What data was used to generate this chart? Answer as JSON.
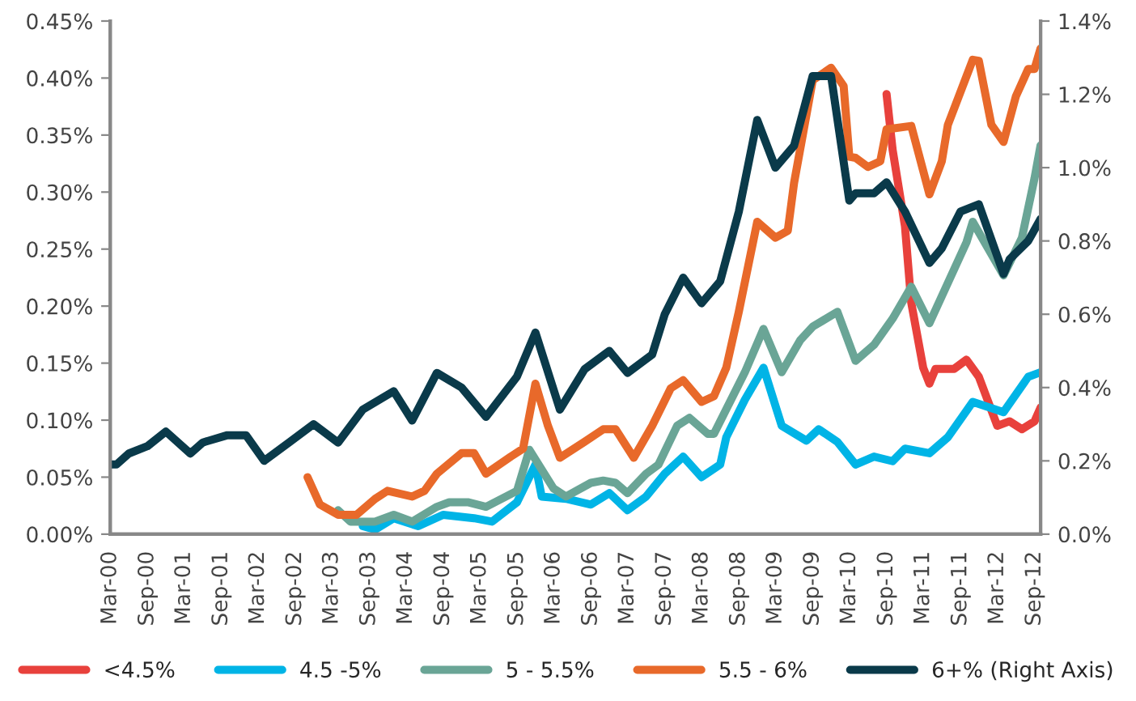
{
  "chart_data": {
    "type": "line",
    "legend": "bottom",
    "grid": false,
    "marker": "none",
    "line_style": "solid",
    "xlim": [
      "2000-03",
      "2012-10"
    ],
    "xticks": [
      {
        "value": "2000-03",
        "label": "Mar-00"
      },
      {
        "value": "2000-09",
        "label": "Sep-00"
      },
      {
        "value": "2001-03",
        "label": "Mar-01"
      },
      {
        "value": "2001-09",
        "label": "Sep-01"
      },
      {
        "value": "2002-03",
        "label": "Mar-02"
      },
      {
        "value": "2002-09",
        "label": "Sep-02"
      },
      {
        "value": "2003-03",
        "label": "Mar-03"
      },
      {
        "value": "2003-09",
        "label": "Sep-03"
      },
      {
        "value": "2004-03",
        "label": "Mar-04"
      },
      {
        "value": "2004-09",
        "label": "Sep-04"
      },
      {
        "value": "2005-03",
        "label": "Mar-05"
      },
      {
        "value": "2005-09",
        "label": "Sep-05"
      },
      {
        "value": "2006-03",
        "label": "Mar-06"
      },
      {
        "value": "2006-09",
        "label": "Sep-06"
      },
      {
        "value": "2007-03",
        "label": "Mar-07"
      },
      {
        "value": "2007-09",
        "label": "Sep-07"
      },
      {
        "value": "2008-03",
        "label": "Mar-08"
      },
      {
        "value": "2008-09",
        "label": "Sep-08"
      },
      {
        "value": "2009-03",
        "label": "Mar-09"
      },
      {
        "value": "2009-09",
        "label": "Sep-09"
      },
      {
        "value": "2010-03",
        "label": "Mar-10"
      },
      {
        "value": "2010-09",
        "label": "Sep-10"
      },
      {
        "value": "2011-03",
        "label": "Mar-11"
      },
      {
        "value": "2011-09",
        "label": "Sep-11"
      },
      {
        "value": "2012-03",
        "label": "Mar-12"
      },
      {
        "value": "2012-09",
        "label": "Sep-12"
      }
    ],
    "ylim": [
      0,
      0.45
    ],
    "yticks": [
      {
        "value": 0,
        "label": "0.00%"
      },
      {
        "value": 0.05,
        "label": "0.05%"
      },
      {
        "value": 0.1,
        "label": "0.10%"
      },
      {
        "value": 0.15,
        "label": "0.15%"
      },
      {
        "value": 0.2,
        "label": "0.20%"
      },
      {
        "value": 0.25,
        "label": "0.25%"
      },
      {
        "value": 0.3,
        "label": "0.30%"
      },
      {
        "value": 0.35,
        "label": "0.35%"
      },
      {
        "value": 0.4,
        "label": "0.40%"
      },
      {
        "value": 0.45,
        "label": "0.45%"
      }
    ],
    "y2lim": [
      0,
      1.4
    ],
    "y2ticks": [
      {
        "value": 0,
        "label": "0.0%"
      },
      {
        "value": 0.2,
        "label": "0.2%"
      },
      {
        "value": 0.4,
        "label": "0.4%"
      },
      {
        "value": 0.6,
        "label": "0.6%"
      },
      {
        "value": 0.8,
        "label": "0.8%"
      },
      {
        "value": 1.0,
        "label": "1.0%"
      },
      {
        "value": 1.2,
        "label": "1.2%"
      },
      {
        "value": 1.4,
        "label": "1.4%"
      }
    ],
    "series": [
      {
        "name": "<4.5%",
        "color": "#e8413c",
        "x": [
          "2010-09",
          "2010-10",
          "2010-12",
          "2011-01",
          "2011-03",
          "2011-04",
          "2011-05",
          "2011-08",
          "2011-10",
          "2011-12",
          "2012-03",
          "2012-05",
          "2012-07",
          "2012-09",
          "2012-10"
        ],
        "values": [
          0.386,
          0.337,
          0.27,
          0.203,
          0.146,
          0.132,
          0.145,
          0.145,
          0.153,
          0.138,
          0.095,
          0.099,
          0.092,
          0.099,
          0.111
        ]
      },
      {
        "name": "4.5 -5%",
        "color": "#00b4e6",
        "x": [
          "2003-08",
          "2003-10",
          "2004-01",
          "2004-05",
          "2004-09",
          "2005-02",
          "2005-05",
          "2005-09",
          "2005-12",
          "2006-01",
          "2006-05",
          "2006-09",
          "2006-12",
          "2007-03",
          "2007-06",
          "2007-09",
          "2007-12",
          "2008-03",
          "2008-06",
          "2008-07",
          "2008-10",
          "2009-01",
          "2009-04",
          "2009-08",
          "2009-10",
          "2010-01",
          "2010-04",
          "2010-07",
          "2010-10",
          "2010-12",
          "2011-04",
          "2011-07",
          "2011-11",
          "2012-04",
          "2012-08",
          "2012-10"
        ],
        "values": [
          0.007,
          0.004,
          0.014,
          0.007,
          0.017,
          0.014,
          0.011,
          0.028,
          0.061,
          0.033,
          0.031,
          0.026,
          0.036,
          0.021,
          0.033,
          0.053,
          0.068,
          0.05,
          0.061,
          0.085,
          0.118,
          0.146,
          0.095,
          0.082,
          0.092,
          0.081,
          0.061,
          0.068,
          0.064,
          0.075,
          0.071,
          0.085,
          0.116,
          0.107,
          0.138,
          0.142
        ]
      },
      {
        "name": "5 - 5.5%",
        "color": "#6aa596",
        "x": [
          "2003-04",
          "2003-06",
          "2003-10",
          "2004-01",
          "2004-04",
          "2004-08",
          "2004-10",
          "2005-01",
          "2005-04",
          "2005-09",
          "2005-11",
          "2006-03",
          "2006-05",
          "2006-09",
          "2006-11",
          "2007-01",
          "2007-03",
          "2007-06",
          "2007-08",
          "2007-11",
          "2008-01",
          "2008-04",
          "2008-05",
          "2008-10",
          "2009-01",
          "2009-04",
          "2009-07",
          "2009-09",
          "2010-01",
          "2010-04",
          "2010-07",
          "2010-10",
          "2011-01",
          "2011-04",
          "2011-10",
          "2011-11",
          "2012-04",
          "2012-07",
          "2012-09",
          "2012-10"
        ],
        "values": [
          0.021,
          0.011,
          0.011,
          0.017,
          0.011,
          0.024,
          0.028,
          0.028,
          0.024,
          0.038,
          0.074,
          0.04,
          0.033,
          0.045,
          0.047,
          0.045,
          0.036,
          0.053,
          0.061,
          0.095,
          0.102,
          0.088,
          0.088,
          0.142,
          0.18,
          0.142,
          0.17,
          0.182,
          0.195,
          0.152,
          0.166,
          0.189,
          0.217,
          0.185,
          0.256,
          0.274,
          0.227,
          0.26,
          0.312,
          0.341
        ]
      },
      {
        "name": "5.5 - 6%",
        "color": "#e8692a",
        "x": [
          "2002-11",
          "2003-01",
          "2003-04",
          "2003-07",
          "2003-10",
          "2003-12",
          "2004-04",
          "2004-06",
          "2004-08",
          "2004-12",
          "2005-02",
          "2005-04",
          "2005-08",
          "2005-10",
          "2005-12",
          "2006-02",
          "2006-04",
          "2006-08",
          "2006-11",
          "2007-01",
          "2007-04",
          "2007-07",
          "2007-10",
          "2007-12",
          "2008-03",
          "2008-05",
          "2008-07",
          "2008-09",
          "2008-12",
          "2009-03",
          "2009-05",
          "2009-06",
          "2009-09",
          "2009-12",
          "2010-02",
          "2010-03",
          "2010-04",
          "2010-06",
          "2010-08",
          "2010-09",
          "2011-01",
          "2011-04",
          "2011-06",
          "2011-07",
          "2011-11",
          "2011-12",
          "2012-02",
          "2012-04",
          "2012-06",
          "2012-08",
          "2012-09",
          "2012-10"
        ],
        "values": [
          0.05,
          0.026,
          0.017,
          0.017,
          0.031,
          0.038,
          0.033,
          0.038,
          0.053,
          0.071,
          0.071,
          0.053,
          0.068,
          0.075,
          0.132,
          0.095,
          0.067,
          0.081,
          0.092,
          0.092,
          0.067,
          0.095,
          0.128,
          0.135,
          0.116,
          0.121,
          0.146,
          0.195,
          0.274,
          0.26,
          0.266,
          0.308,
          0.398,
          0.409,
          0.393,
          0.331,
          0.33,
          0.322,
          0.327,
          0.355,
          0.358,
          0.298,
          0.327,
          0.359,
          0.416,
          0.415,
          0.359,
          0.344,
          0.384,
          0.408,
          0.408,
          0.426
        ]
      },
      {
        "name": "6+% (Right Axis)",
        "color": "#0a3a4a",
        "axis": "y2",
        "x": [
          "2000-03",
          "2000-04",
          "2000-06",
          "2000-09",
          "2000-12",
          "2001-04",
          "2001-06",
          "2001-10",
          "2002-01",
          "2002-04",
          "2002-08",
          "2002-12",
          "2003-04",
          "2003-08",
          "2004-01",
          "2004-04",
          "2004-08",
          "2004-12",
          "2005-04",
          "2005-09",
          "2005-12",
          "2006-04",
          "2006-08",
          "2006-12",
          "2007-03",
          "2007-07",
          "2007-09",
          "2007-12",
          "2008-03",
          "2008-06",
          "2008-09",
          "2008-12",
          "2009-03",
          "2009-06",
          "2009-09",
          "2009-12",
          "2010-03",
          "2010-04",
          "2010-07",
          "2010-09",
          "2010-12",
          "2011-04",
          "2011-06",
          "2011-09",
          "2011-12",
          "2012-04",
          "2012-05",
          "2012-08",
          "2012-10"
        ],
        "values": [
          0.19,
          0.19,
          0.22,
          0.24,
          0.28,
          0.22,
          0.25,
          0.27,
          0.27,
          0.2,
          0.25,
          0.3,
          0.25,
          0.34,
          0.39,
          0.31,
          0.44,
          0.4,
          0.32,
          0.43,
          0.55,
          0.34,
          0.45,
          0.5,
          0.44,
          0.49,
          0.6,
          0.7,
          0.63,
          0.69,
          0.88,
          1.13,
          1.0,
          1.06,
          1.25,
          1.25,
          0.91,
          0.93,
          0.93,
          0.96,
          0.88,
          0.74,
          0.78,
          0.88,
          0.9,
          0.71,
          0.75,
          0.8,
          0.86
        ]
      }
    ]
  }
}
